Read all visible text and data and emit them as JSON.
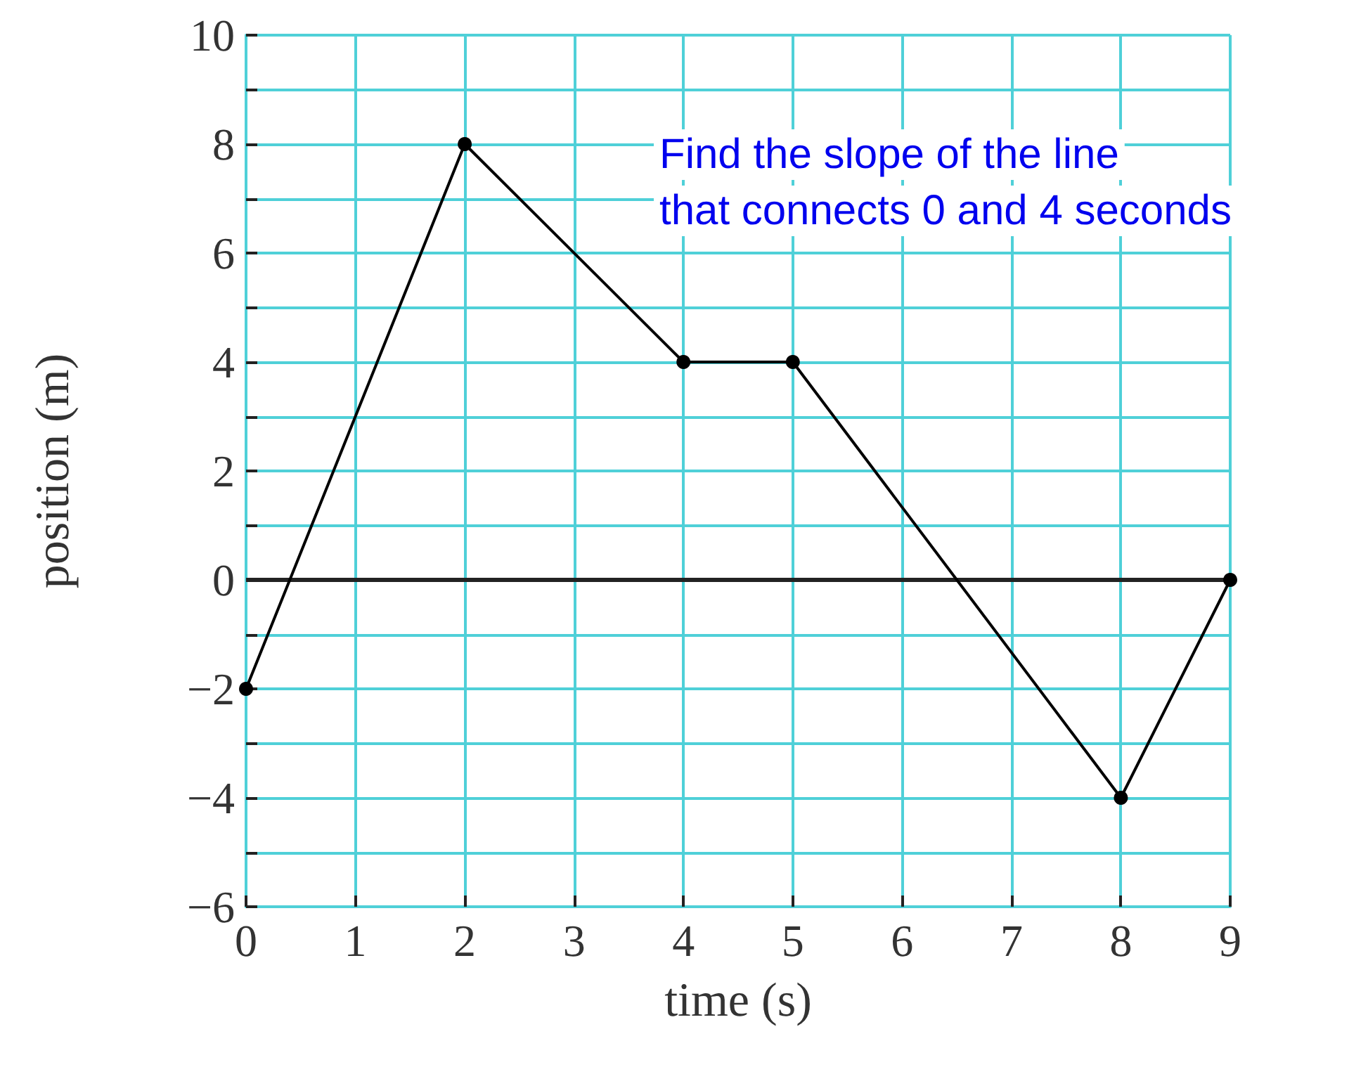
{
  "chart_data": {
    "type": "line",
    "xlabel": "time (s)",
    "ylabel": "position (m)",
    "x": [
      0,
      2,
      4,
      5,
      8,
      9
    ],
    "values": [
      -2,
      8,
      4,
      4,
      -4,
      0
    ],
    "color": "#000000",
    "marker": "circle",
    "line_style": "solid",
    "grid": true,
    "xlim": [
      0,
      9
    ],
    "xticks": [
      0,
      1,
      2,
      3,
      4,
      5,
      6,
      7,
      8,
      9
    ],
    "ylim": [
      -6,
      10
    ],
    "yticks": [
      -6,
      {
        "value": -5,
        "label": null
      },
      -4,
      {
        "value": -3,
        "label": null
      },
      -2,
      {
        "value": -1,
        "label": null
      },
      0,
      {
        "value": 1,
        "label": null
      },
      2,
      {
        "value": 3,
        "label": null
      },
      4,
      {
        "value": 5,
        "label": null
      },
      6,
      {
        "value": 7,
        "label": null
      },
      8,
      {
        "value": 9,
        "label": null
      },
      10
    ],
    "ref_lines": [
      {
        "axis": "y",
        "value": 0,
        "color": "#222222"
      }
    ],
    "annotations": [
      "Find the slope of the line",
      "that connects 0 and 4 seconds"
    ]
  }
}
